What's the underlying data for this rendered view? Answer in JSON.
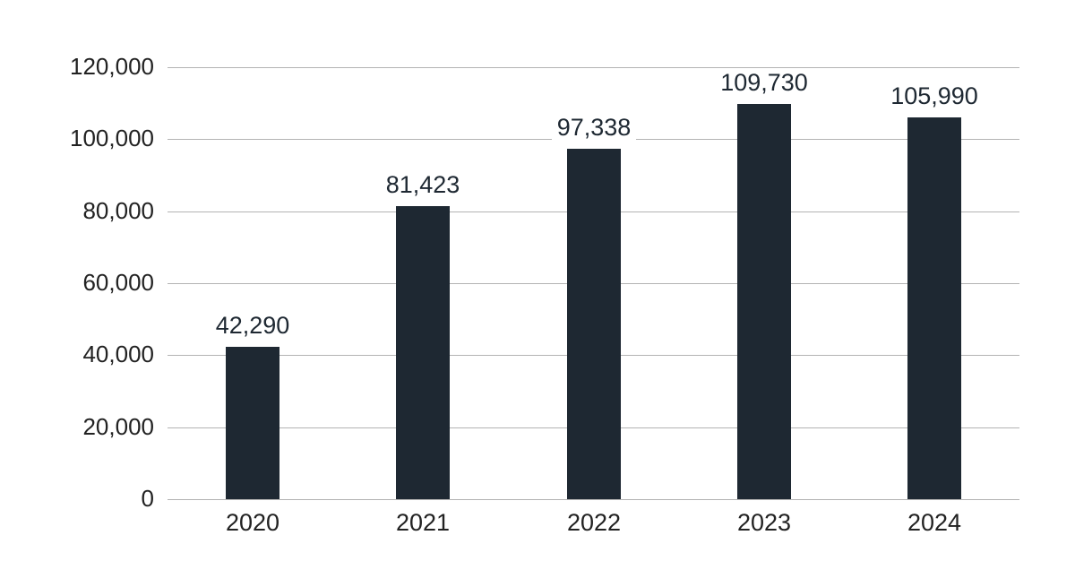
{
  "chart_data": {
    "type": "bar",
    "title": "",
    "xlabel": "",
    "ylabel": "",
    "categories": [
      "2020",
      "2021",
      "2022",
      "2023",
      "2024"
    ],
    "values": [
      42290,
      81423,
      97338,
      109730,
      105990
    ],
    "value_labels": [
      "42,290",
      "81,423",
      "97,338",
      "109,730",
      "105,990"
    ],
    "ylim": [
      0,
      120000
    ],
    "yticks": [
      0,
      20000,
      40000,
      60000,
      80000,
      100000,
      120000
    ],
    "ytick_labels": [
      "0",
      "20,000",
      "40,000",
      "60,000",
      "80,000",
      "100,000",
      "120,000"
    ],
    "grid": true,
    "legend": null,
    "bar_color": "#1e2832"
  }
}
